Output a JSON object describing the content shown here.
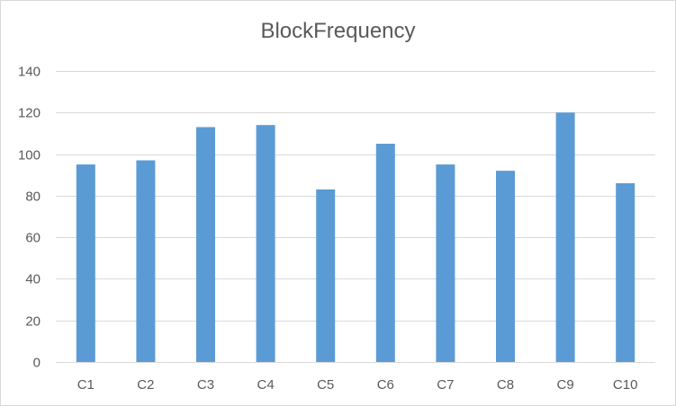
{
  "chart_data": {
    "type": "bar",
    "title": "BlockFrequency",
    "xlabel": "",
    "ylabel": "",
    "categories": [
      "C1",
      "C2",
      "C3",
      "C4",
      "C5",
      "C6",
      "C7",
      "C8",
      "C9",
      "C10"
    ],
    "values": [
      95,
      97,
      113,
      114,
      83,
      105,
      95,
      92,
      120,
      86
    ],
    "ylim": [
      0,
      140
    ],
    "yticks": [
      0,
      20,
      40,
      60,
      80,
      100,
      120,
      140
    ],
    "grid": true,
    "legend": "none",
    "bar_color": "#5b9bd5",
    "grid_color": "#d9d9d9"
  }
}
